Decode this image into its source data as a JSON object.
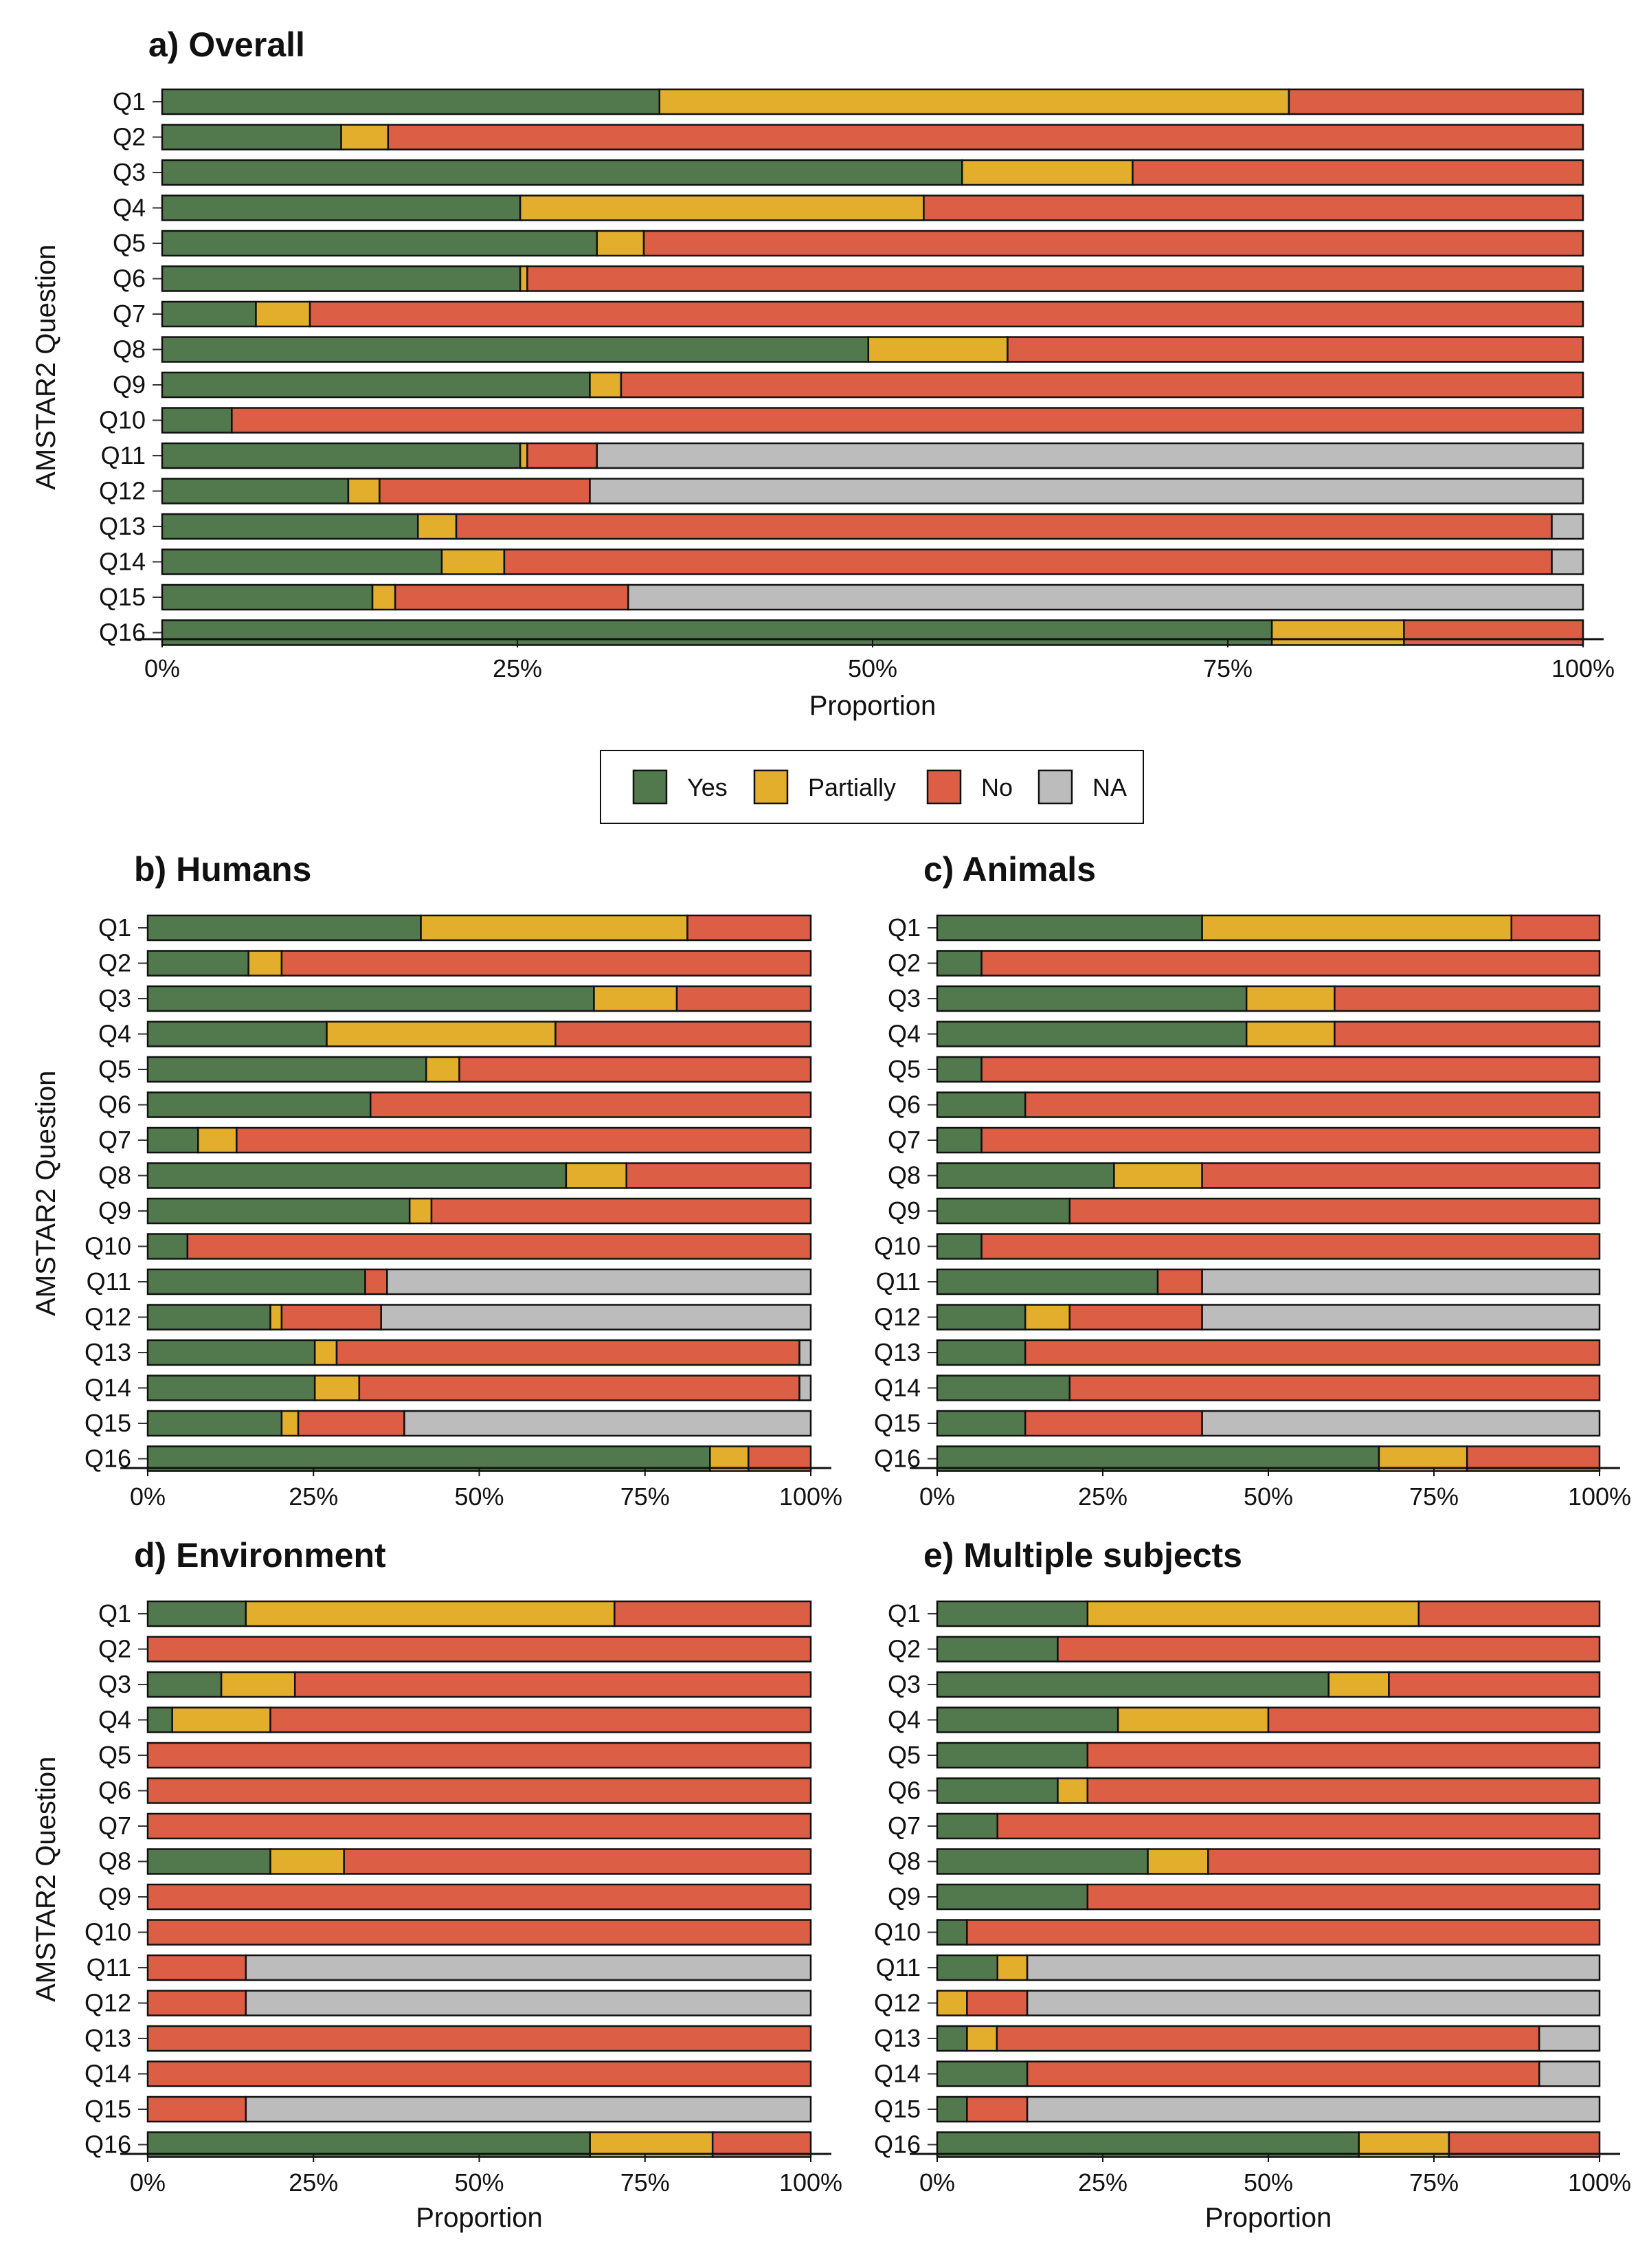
{
  "figure": {
    "y_axis_title": "AMSTAR2 Question",
    "x_axis_title": "Proportion"
  },
  "legend": {
    "placement": "center",
    "items": [
      {
        "key": "yes",
        "label": "Yes",
        "color": "#52784E"
      },
      {
        "key": "partially",
        "label": "Partially",
        "color": "#E3AE2B"
      },
      {
        "key": "no",
        "label": "No",
        "color": "#DB5E45"
      },
      {
        "key": "na",
        "label": "NA",
        "color": "#BCBCBC"
      }
    ]
  },
  "chart_data": [
    {
      "type": "bar",
      "orientation": "horizontal-stacked",
      "title": "a) Overall",
      "xlabel": "Proportion",
      "ylabel": "AMSTAR2 Question",
      "xlim": [
        0,
        1
      ],
      "x_ticks": [
        "0%",
        "25%",
        "50%",
        "75%",
        "100%"
      ],
      "categories": [
        "Q1",
        "Q2",
        "Q3",
        "Q4",
        "Q5",
        "Q6",
        "Q7",
        "Q8",
        "Q9",
        "Q10",
        "Q11",
        "Q12",
        "Q13",
        "Q14",
        "Q15",
        "Q16"
      ],
      "series": [
        {
          "name": "Yes",
          "values": [
            0.35,
            0.126,
            0.563,
            0.252,
            0.306,
            0.252,
            0.066,
            0.497,
            0.301,
            0.049,
            0.252,
            0.131,
            0.18,
            0.197,
            0.148,
            0.781
          ]
        },
        {
          "name": "Partially",
          "values": [
            0.443,
            0.033,
            0.12,
            0.284,
            0.033,
            0.005,
            0.038,
            0.098,
            0.022,
            0,
            0.005,
            0.022,
            0.027,
            0.044,
            0.016,
            0.093
          ]
        },
        {
          "name": "No",
          "values": [
            0.207,
            0.841,
            0.317,
            0.464,
            0.661,
            0.743,
            0.896,
            0.405,
            0.677,
            0.951,
            0.049,
            0.148,
            0.771,
            0.738,
            0.164,
            0.126
          ]
        },
        {
          "name": "NA",
          "values": [
            0,
            0,
            0,
            0,
            0,
            0,
            0,
            0,
            0,
            0,
            0.694,
            0.699,
            0.022,
            0.022,
            0.672,
            0
          ]
        }
      ]
    },
    {
      "type": "bar",
      "orientation": "horizontal-stacked",
      "title": "b) Humans",
      "xlabel": "",
      "ylabel": "AMSTAR2 Question",
      "xlim": [
        0,
        1
      ],
      "x_ticks": [
        "0%",
        "25%",
        "50%",
        "75%",
        "100%"
      ],
      "categories": [
        "Q1",
        "Q2",
        "Q3",
        "Q4",
        "Q5",
        "Q6",
        "Q7",
        "Q8",
        "Q9",
        "Q10",
        "Q11",
        "Q12",
        "Q13",
        "Q14",
        "Q15",
        "Q16"
      ],
      "series": [
        {
          "name": "Yes",
          "values": [
            0.412,
            0.152,
            0.673,
            0.27,
            0.42,
            0.336,
            0.076,
            0.631,
            0.395,
            0.06,
            0.328,
            0.185,
            0.252,
            0.252,
            0.202,
            0.848
          ]
        },
        {
          "name": "Partially",
          "values": [
            0.402,
            0.05,
            0.125,
            0.345,
            0.05,
            0,
            0.058,
            0.091,
            0.033,
            0,
            0,
            0.017,
            0.033,
            0.067,
            0.025,
            0.058
          ]
        },
        {
          "name": "No",
          "values": [
            0.186,
            0.798,
            0.202,
            0.385,
            0.53,
            0.664,
            0.866,
            0.278,
            0.572,
            0.94,
            0.033,
            0.15,
            0.698,
            0.664,
            0.16,
            0.094
          ]
        },
        {
          "name": "NA",
          "values": [
            0,
            0,
            0,
            0,
            0,
            0,
            0,
            0,
            0,
            0,
            0.639,
            0.648,
            0.017,
            0.017,
            0.613,
            0
          ]
        }
      ]
    },
    {
      "type": "bar",
      "orientation": "horizontal-stacked",
      "title": "c) Animals",
      "xlabel": "",
      "ylabel": "",
      "xlim": [
        0,
        1
      ],
      "x_ticks": [
        "0%",
        "25%",
        "50%",
        "75%",
        "100%"
      ],
      "categories": [
        "Q1",
        "Q2",
        "Q3",
        "Q4",
        "Q5",
        "Q6",
        "Q7",
        "Q8",
        "Q9",
        "Q10",
        "Q11",
        "Q12",
        "Q13",
        "Q14",
        "Q15",
        "Q16"
      ],
      "series": [
        {
          "name": "Yes",
          "values": [
            0.4,
            0.067,
            0.467,
            0.467,
            0.067,
            0.133,
            0.067,
            0.267,
            0.2,
            0.067,
            0.333,
            0.133,
            0.133,
            0.2,
            0.133,
            0.667
          ]
        },
        {
          "name": "Partially",
          "values": [
            0.467,
            0,
            0.133,
            0.133,
            0,
            0,
            0,
            0.133,
            0,
            0,
            0,
            0.067,
            0,
            0,
            0,
            0.133
          ]
        },
        {
          "name": "No",
          "values": [
            0.133,
            0.933,
            0.4,
            0.4,
            0.933,
            0.867,
            0.933,
            0.6,
            0.8,
            0.933,
            0.067,
            0.2,
            0.867,
            0.8,
            0.267,
            0.2
          ]
        },
        {
          "name": "NA",
          "values": [
            0,
            0,
            0,
            0,
            0,
            0,
            0,
            0,
            0,
            0,
            0.6,
            0.6,
            0,
            0,
            0.6,
            0
          ]
        }
      ]
    },
    {
      "type": "bar",
      "orientation": "horizontal-stacked",
      "title": "d) Environment",
      "xlabel": "Proportion",
      "ylabel": "AMSTAR2 Question",
      "xlim": [
        0,
        1
      ],
      "x_ticks": [
        "0%",
        "25%",
        "50%",
        "75%",
        "100%"
      ],
      "categories": [
        "Q1",
        "Q2",
        "Q3",
        "Q4",
        "Q5",
        "Q6",
        "Q7",
        "Q8",
        "Q9",
        "Q10",
        "Q11",
        "Q12",
        "Q13",
        "Q14",
        "Q15",
        "Q16"
      ],
      "series": [
        {
          "name": "Yes",
          "values": [
            0.148,
            0,
            0.111,
            0.037,
            0,
            0,
            0,
            0.185,
            0,
            0,
            0,
            0,
            0,
            0,
            0,
            0.667
          ]
        },
        {
          "name": "Partially",
          "values": [
            0.556,
            0,
            0.111,
            0.148,
            0,
            0,
            0,
            0.111,
            0,
            0,
            0,
            0,
            0,
            0,
            0,
            0.185
          ]
        },
        {
          "name": "No",
          "values": [
            0.296,
            1,
            0.778,
            0.815,
            1,
            1,
            1,
            0.704,
            1,
            1,
            0.148,
            0.148,
            1,
            1,
            0.148,
            0.148
          ]
        },
        {
          "name": "NA",
          "values": [
            0,
            0,
            0,
            0,
            0,
            0,
            0,
            0,
            0,
            0,
            0.852,
            0.852,
            0,
            0,
            0.852,
            0
          ]
        }
      ]
    },
    {
      "type": "bar",
      "orientation": "horizontal-stacked",
      "title": "e) Multiple subjects",
      "xlabel": "Proportion",
      "ylabel": "",
      "xlim": [
        0,
        1
      ],
      "x_ticks": [
        "0%",
        "25%",
        "50%",
        "75%",
        "100%"
      ],
      "categories": [
        "Q1",
        "Q2",
        "Q3",
        "Q4",
        "Q5",
        "Q6",
        "Q7",
        "Q8",
        "Q9",
        "Q10",
        "Q11",
        "Q12",
        "Q13",
        "Q14",
        "Q15",
        "Q16"
      ],
      "series": [
        {
          "name": "Yes",
          "values": [
            0.227,
            0.182,
            0.591,
            0.273,
            0.227,
            0.182,
            0.091,
            0.318,
            0.227,
            0.045,
            0.091,
            0,
            0.045,
            0.136,
            0.045,
            0.636
          ]
        },
        {
          "name": "Partially",
          "values": [
            0.5,
            0,
            0.091,
            0.227,
            0,
            0.045,
            0,
            0.091,
            0,
            0,
            0.045,
            0.045,
            0.045,
            0,
            0,
            0.136
          ]
        },
        {
          "name": "No",
          "values": [
            0.273,
            0.818,
            0.318,
            0.5,
            0.773,
            0.773,
            0.909,
            0.591,
            0.773,
            0.955,
            0,
            0.091,
            0.818,
            0.773,
            0.091,
            0.227
          ]
        },
        {
          "name": "NA",
          "values": [
            0,
            0,
            0,
            0,
            0,
            0,
            0,
            0,
            0,
            0,
            0.864,
            0.864,
            0.091,
            0.091,
            0.864,
            0
          ]
        }
      ]
    }
  ]
}
